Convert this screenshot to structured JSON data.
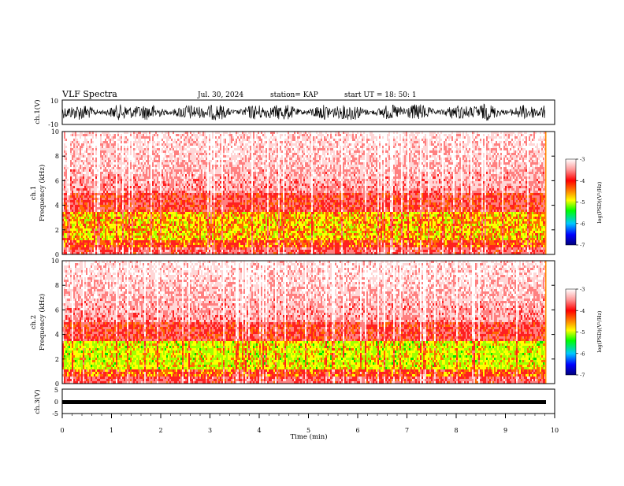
{
  "header": {
    "title": "VLF Spectra",
    "date": "Jul. 30, 2024",
    "station": "station= KAP",
    "start": "start  UT =   18: 50: 1"
  },
  "chart_data": [
    {
      "type": "line",
      "name": "ch1-voltage",
      "ylabel": "ch.1(V)",
      "ylim": [
        -10,
        10
      ],
      "yticks": [
        "10",
        "-10"
      ],
      "xlim": [
        0,
        10
      ]
    },
    {
      "type": "heatmap",
      "name": "ch1-spectrogram",
      "ylabel": "ch.1\nFrequency (kHz)",
      "ylim": [
        0,
        10
      ],
      "yticks": [
        "0",
        "2",
        "4",
        "6",
        "8",
        "10"
      ],
      "colorbar": {
        "label": "log(PSD)(V²/Hz)",
        "range": [
          -7,
          -3
        ],
        "ticks": [
          "-3",
          "-4",
          "-5",
          "-6",
          "-7"
        ]
      }
    },
    {
      "type": "heatmap",
      "name": "ch2-spectrogram",
      "ylabel": "ch.2\nFrequency (kHz)",
      "ylim": [
        0,
        10
      ],
      "yticks": [
        "0",
        "2",
        "4",
        "6",
        "8",
        "10"
      ],
      "colorbar": {
        "label": "log(PSD)(V²/Hz)",
        "range": [
          -7,
          -3
        ],
        "ticks": [
          "-3",
          "-4",
          "-5",
          "-6",
          "-7"
        ]
      }
    },
    {
      "type": "line",
      "name": "ch3-voltage",
      "ylabel": "ch.3(V)",
      "ylim": [
        -5,
        5
      ],
      "yticks": [
        "5",
        "0",
        "-5"
      ],
      "xlabel": "Time (min)",
      "xlim": [
        0,
        10
      ],
      "xticks": [
        "0",
        "1",
        "2",
        "3",
        "4",
        "5",
        "6",
        "7",
        "8",
        "9",
        "10"
      ]
    }
  ],
  "colors": {
    "background": "#ffffff",
    "axis": "#000000",
    "strong": "#ff0000",
    "mid": "#ffff00",
    "low": "#00ff00"
  }
}
